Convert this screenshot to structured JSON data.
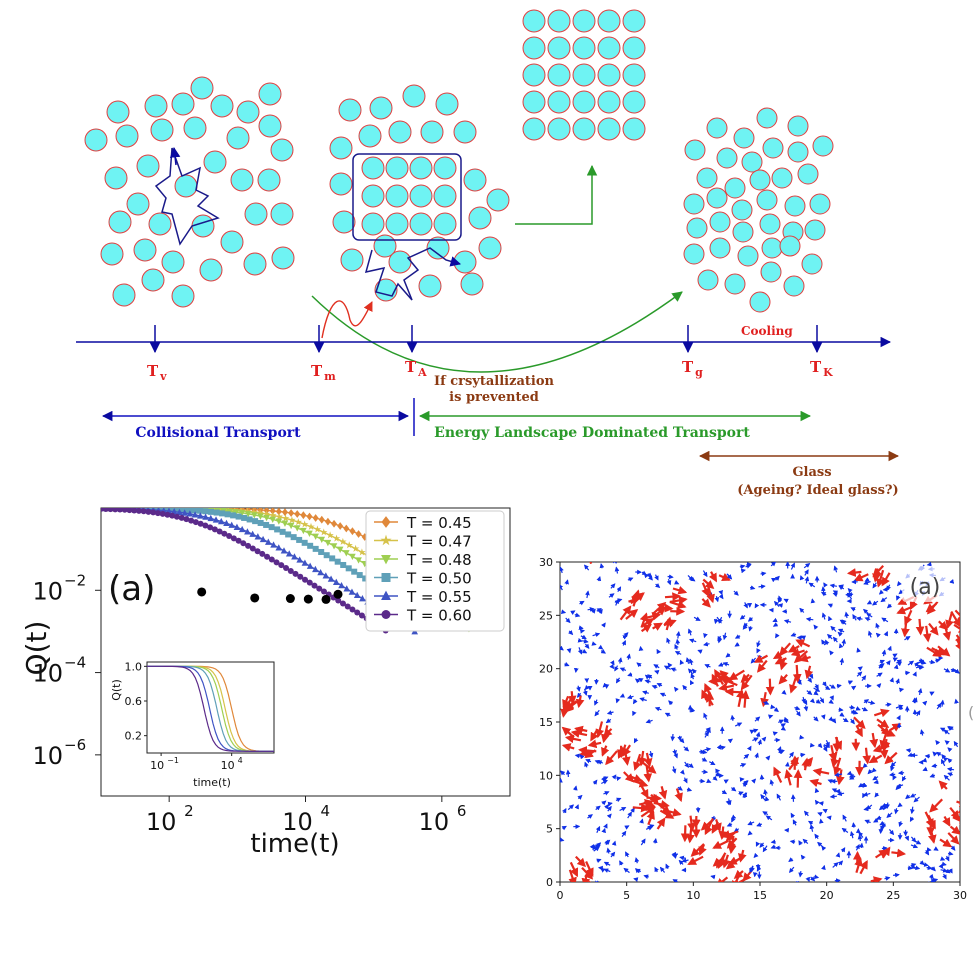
{
  "colors": {
    "particle_fill": "#6ff3f3",
    "particle_stroke": "#e04040",
    "axis_blue": "#0a0aa0",
    "label_red": "#e02020",
    "transport_blue": "#1010c0",
    "landscape_green": "#2a9a2a",
    "glass_brown": "#8b3a12",
    "arrow_red": "#e03020",
    "vec_red": "#e52a1e",
    "vec_blue": "#1030e8"
  },
  "schematic": {
    "temps": {
      "tv": {
        "main": "T",
        "sub": "v"
      },
      "tm": {
        "main": "T",
        "sub": "m"
      },
      "ta": {
        "main": "T",
        "sub": "A"
      },
      "tg": {
        "main": "T",
        "sub": "g"
      },
      "tk": {
        "main": "T",
        "sub": "K"
      }
    },
    "cooling_label": "Cooling",
    "crystallization_note": [
      "If crsytallization",
      "is prevented"
    ],
    "collisional_label": "Collisional Transport",
    "landscape_label": "Energy Landscape Dominated Transport",
    "glass_label": [
      "Glass",
      "(Ageing? Ideal glass?)"
    ]
  },
  "chart_data": [
    {
      "type": "line",
      "panel_label": "(a)",
      "xlabel": "time(t)",
      "ylabel": "Q(t)",
      "xscale": "log",
      "yscale": "log",
      "xlim": [
        10,
        10000000
      ],
      "ylim": [
        1e-07,
        1
      ],
      "xticks": [
        {
          "label": "10",
          "exp": "2",
          "v": 100
        },
        {
          "label": "10",
          "exp": "4",
          "v": 10000
        },
        {
          "label": "10",
          "exp": "6",
          "v": 1000000
        }
      ],
      "yticks": [
        {
          "label": "10",
          "exp": "−2",
          "v": 0.01
        },
        {
          "label": "10",
          "exp": "−4",
          "v": 0.0001
        },
        {
          "label": "10",
          "exp": "−6",
          "v": 1e-06
        }
      ],
      "legend_position": "top-right",
      "series": [
        {
          "name": "T = 0.45",
          "T": 0.45,
          "color": "#e0883a",
          "marker": "diamond",
          "tau": 20000,
          "tmax": 2500000
        },
        {
          "name": "T = 0.47",
          "T": 0.47,
          "color": "#d6c24a",
          "marker": "star",
          "tau": 7000,
          "tmax": 4000000
        },
        {
          "name": "T = 0.48",
          "T": 0.48,
          "color": "#9fcf52",
          "marker": "triangle-down",
          "tau": 4000,
          "tmax": 2500000
        },
        {
          "name": "T = 0.50",
          "T": 0.5,
          "color": "#5fa0b8",
          "marker": "square",
          "tau": 1800,
          "tmax": 700000
        },
        {
          "name": "T = 0.55",
          "T": 0.55,
          "color": "#3f54c4",
          "marker": "triangle-up",
          "tau": 550,
          "tmax": 400000
        },
        {
          "name": "T = 0.60",
          "T": 0.6,
          "color": "#5b2a8a",
          "marker": "circle",
          "tau": 220,
          "tmax": 150000
        }
      ],
      "black_points": [
        {
          "x": 300,
          "y": 0.0091
        },
        {
          "x": 1800,
          "y": 0.0065
        },
        {
          "x": 6000,
          "y": 0.0063
        },
        {
          "x": 11000,
          "y": 0.0061
        },
        {
          "x": 20000,
          "y": 0.006
        },
        {
          "x": 30000,
          "y": 0.008
        }
      ],
      "inset": {
        "xlabel": "time(t)",
        "ylabel": "Q(t)",
        "xticks": [
          {
            "label": "10",
            "exp": "−1",
            "v": 0.1
          },
          {
            "label": "10",
            "exp": "4",
            "v": 10000
          }
        ],
        "yticks": [
          {
            "label": "1.0",
            "v": 1.0
          },
          {
            "label": "0.6",
            "v": 0.6
          },
          {
            "label": "0.2",
            "v": 0.2
          }
        ],
        "xlim": [
          0.01,
          10000000
        ],
        "ylim": [
          0,
          1.05
        ]
      }
    },
    {
      "type": "vector_field",
      "panel_label": "(a)",
      "xlim": [
        0,
        30
      ],
      "ylim": [
        0,
        30
      ],
      "xticks": [
        0,
        5,
        10,
        15,
        20,
        25,
        30
      ],
      "yticks": [
        0,
        5,
        10,
        15,
        20,
        25,
        30
      ]
    }
  ]
}
